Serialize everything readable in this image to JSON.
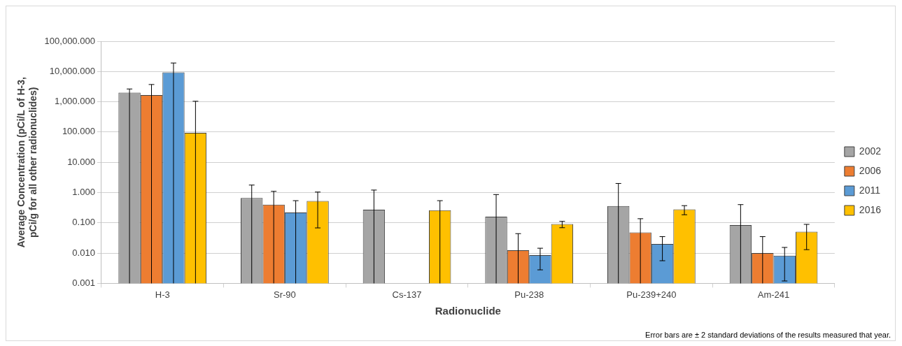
{
  "chart_data": {
    "type": "bar",
    "xlabel": "Radionuclide",
    "ylabel": "Average Concentration (pCi/L of H-3, pCi/g for all other radionuclides)",
    "categories": [
      "H-3",
      "Sr-90",
      "Cs-137",
      "Pu-238",
      "Pu-239+240",
      "Am-241"
    ],
    "series": [
      {
        "name": "2002",
        "color": "#a5a5a5",
        "values": [
          2020,
          0.66,
          0.27,
          0.16,
          0.36,
          0.084
        ],
        "errors": [
          [
            0.001,
            2650
          ],
          [
            0.001,
            1.77
          ],
          [
            0.001,
            1.21
          ],
          [
            0.001,
            0.86
          ],
          [
            0.001,
            2.0
          ],
          [
            0.001,
            0.4
          ]
        ]
      },
      {
        "name": "2006",
        "color": "#ed7d31",
        "values": [
          1670,
          0.4,
          null,
          0.0125,
          0.048,
          0.01
        ],
        "errors": [
          [
            0.001,
            3720
          ],
          [
            0.001,
            1.1
          ],
          null,
          [
            0.001,
            0.044
          ],
          [
            0.001,
            0.137
          ],
          [
            0.001,
            0.035
          ]
        ]
      },
      {
        "name": "2011",
        "color": "#5b9bd5",
        "values": [
          9440,
          0.22,
          null,
          0.0086,
          0.02,
          0.0082
        ],
        "errors": [
          [
            0.001,
            19100
          ],
          [
            0.001,
            0.54
          ],
          null,
          [
            0.0028,
            0.0145
          ],
          [
            0.0056,
            0.035
          ],
          [
            0.0012,
            0.0154
          ]
        ]
      },
      {
        "name": "2016",
        "color": "#ffc000",
        "values": [
          94,
          0.53,
          0.26,
          0.091,
          0.28,
          0.051
        ],
        "errors": [
          [
            0.001,
            1040
          ],
          [
            0.068,
            1.04
          ],
          [
            0.001,
            0.54
          ],
          [
            0.069,
            0.112
          ],
          [
            0.185,
            0.37
          ],
          [
            0.013,
            0.089
          ]
        ]
      }
    ],
    "log": "y",
    "ylim": [
      0.001,
      100000
    ],
    "yticks": [
      {
        "value": 0.001,
        "label": "0.001"
      },
      {
        "value": 0.01,
        "label": "0.010"
      },
      {
        "value": 0.1,
        "label": "0.100"
      },
      {
        "value": 1,
        "label": "1.000"
      },
      {
        "value": 10,
        "label": "10.000"
      },
      {
        "value": 100,
        "label": "100.000"
      },
      {
        "value": 1000,
        "label": "1,000.000"
      },
      {
        "value": 10000,
        "label": "10,000.000"
      },
      {
        "value": 100000,
        "label": "100,000.000"
      }
    ],
    "grid": "y",
    "legend": "right",
    "annotations": [
      "Error bars are ± 2 standard deviations of the results measured that year."
    ]
  }
}
